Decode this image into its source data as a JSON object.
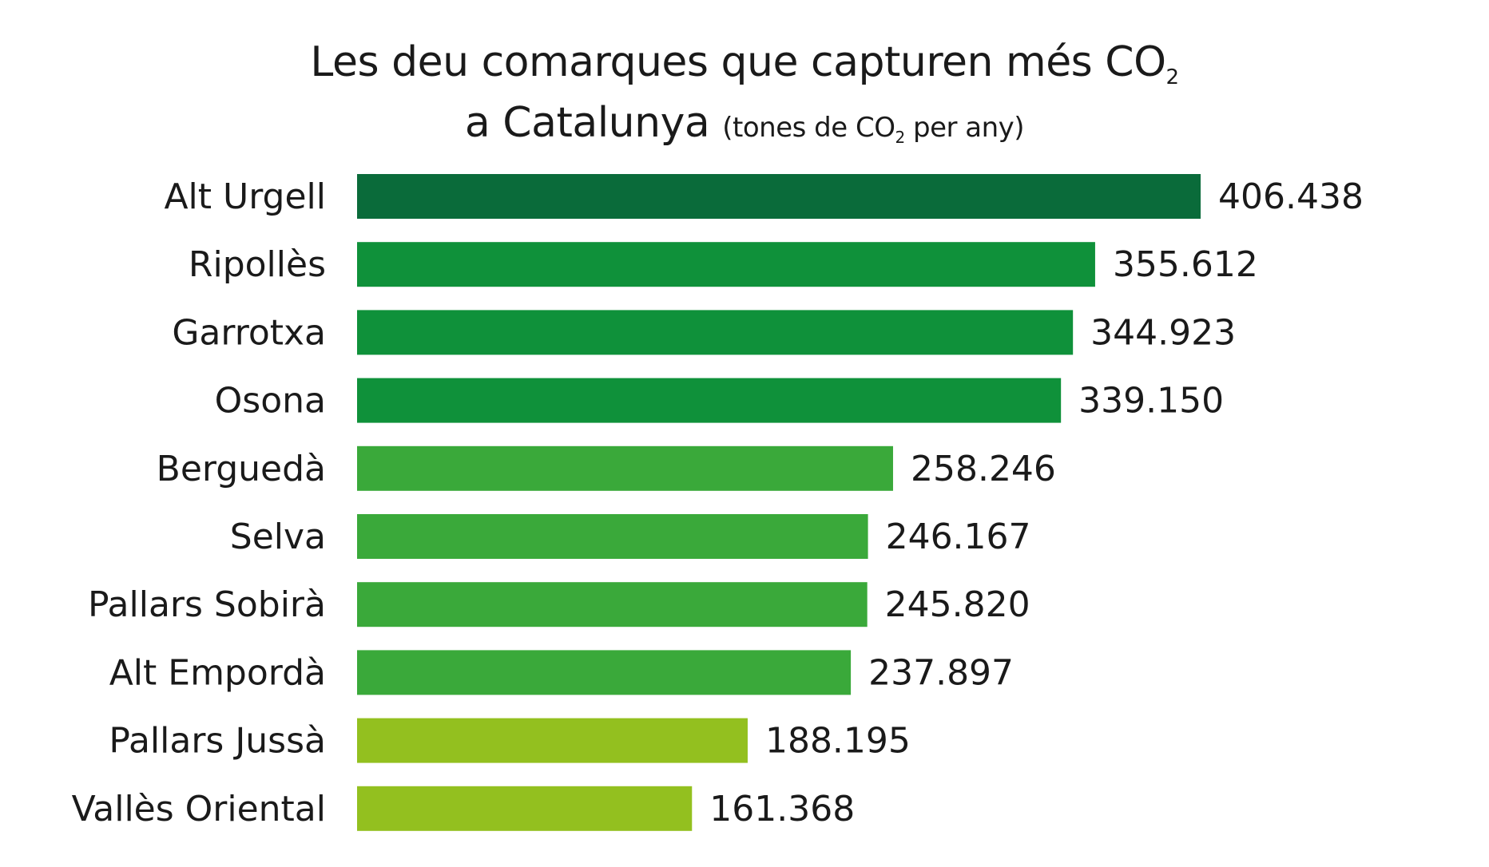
{
  "title": {
    "line1": "Les deu comarques que capturen més CO",
    "line1_sub": "2",
    "line2_main": "a Catalunya",
    "unit_prefix": "(tones de CO",
    "unit_sub": "2",
    "unit_suffix": " per any)"
  },
  "colors": {
    "dark_green": "#0a6b3a",
    "green": "#0f913a",
    "light_green": "#3aa93a",
    "lime": "#93c01f"
  },
  "chart_data": {
    "type": "bar",
    "orientation": "horizontal",
    "categories": [
      "Alt Urgell",
      "Ripollès",
      "Garrotxa",
      "Osona",
      "Berguedà",
      "Selva",
      "Pallars Sobirà",
      "Alt Empordà",
      "Pallars Jussà",
      "Vallès Oriental"
    ],
    "values": [
      406438,
      355612,
      344923,
      339150,
      258246,
      246167,
      245820,
      237897,
      188195,
      161368
    ],
    "value_labels": [
      "406.438",
      "355.612",
      "344.923",
      "339.150",
      "258.246",
      "246.167",
      "245.820",
      "237.897",
      "188.195",
      "161.368"
    ],
    "bar_colors": [
      "#0a6b3a",
      "#0f913a",
      "#0f913a",
      "#0f913a",
      "#3aa93a",
      "#3aa93a",
      "#3aa93a",
      "#3aa93a",
      "#93c01f",
      "#93c01f"
    ],
    "xlim": [
      0,
      406438
    ],
    "grid": false,
    "legend": "none"
  }
}
